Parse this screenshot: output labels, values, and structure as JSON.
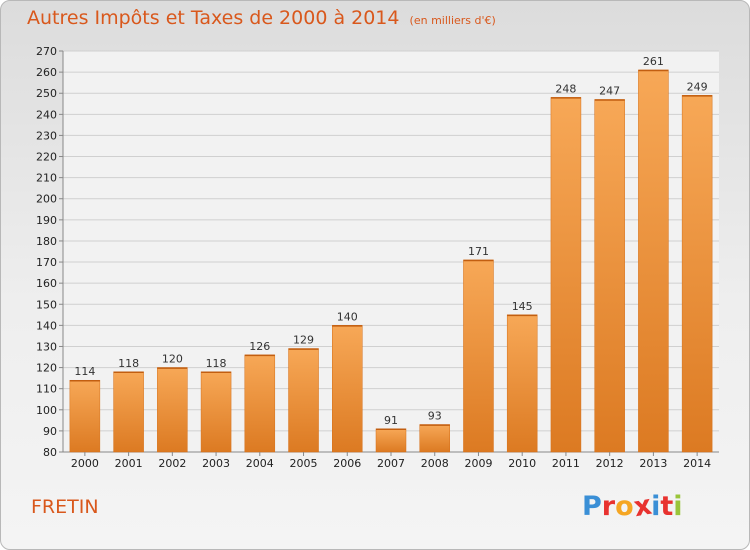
{
  "header": {
    "title": "Autres Impôts et Taxes de 2000 à 2014",
    "subtitle": "(en milliers d'€)"
  },
  "footer": {
    "commune": "FRETIN",
    "logo_letters": [
      "P",
      "r",
      "o",
      "x",
      "i",
      "t",
      "i"
    ],
    "logo_colors": [
      "#3a8fd6",
      "#e8322f",
      "#f5a623",
      "#e8322f",
      "#3a8fd6",
      "#e8322f",
      "#9ac53a"
    ]
  },
  "colors": {
    "bar_light": "#f7a857",
    "bar_dark": "#dc7a22",
    "title": "#d9581c"
  },
  "chart_data": {
    "type": "bar",
    "title": "Autres Impôts et Taxes de 2000 à 2014",
    "subtitle": "(en milliers d'€)",
    "xlabel": "",
    "ylabel": "",
    "categories": [
      "2000",
      "2001",
      "2002",
      "2003",
      "2004",
      "2005",
      "2006",
      "2007",
      "2008",
      "2009",
      "2010",
      "2011",
      "2012",
      "2013",
      "2014"
    ],
    "values": [
      114,
      118,
      120,
      118,
      126,
      129,
      140,
      91,
      93,
      171,
      145,
      248,
      247,
      261,
      249
    ],
    "ylim": [
      80,
      270
    ],
    "ytick_step": 10,
    "grid": true,
    "legend": "none"
  }
}
